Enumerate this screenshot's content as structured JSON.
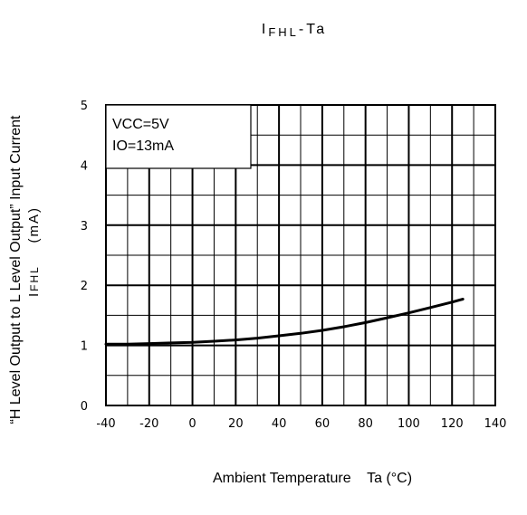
{
  "chart_data": {
    "type": "line",
    "title": {
      "symbol": "I",
      "subscript": "FHL",
      "suffix": "-Ta"
    },
    "xlabel": "Ambient Temperature    Ta (°C)",
    "ylabel": {
      "line1": "“H Level Output to L Level Output” Input Current",
      "line2_symbol": "I",
      "line2_subscript": "FHL",
      "line2_unit": "    (mA)"
    },
    "xlim": [
      -40,
      140
    ],
    "ylim": [
      0,
      5
    ],
    "x_ticks": [
      -40,
      -20,
      0,
      20,
      40,
      60,
      80,
      100,
      120,
      140
    ],
    "y_ticks": [
      0,
      1,
      2,
      3,
      4,
      5
    ],
    "grid": true,
    "annotation": {
      "lines": [
        "VCC=5V",
        "IO=13mA"
      ],
      "placement": "top-left"
    },
    "series": [
      {
        "color": "#000000",
        "x": [
          -40,
          -30,
          -20,
          -10,
          0,
          10,
          20,
          30,
          40,
          50,
          60,
          70,
          80,
          90,
          100,
          110,
          120,
          125
        ],
        "y": [
          1.02,
          1.02,
          1.03,
          1.04,
          1.05,
          1.07,
          1.09,
          1.12,
          1.16,
          1.2,
          1.25,
          1.31,
          1.38,
          1.46,
          1.54,
          1.63,
          1.72,
          1.77
        ]
      }
    ]
  }
}
